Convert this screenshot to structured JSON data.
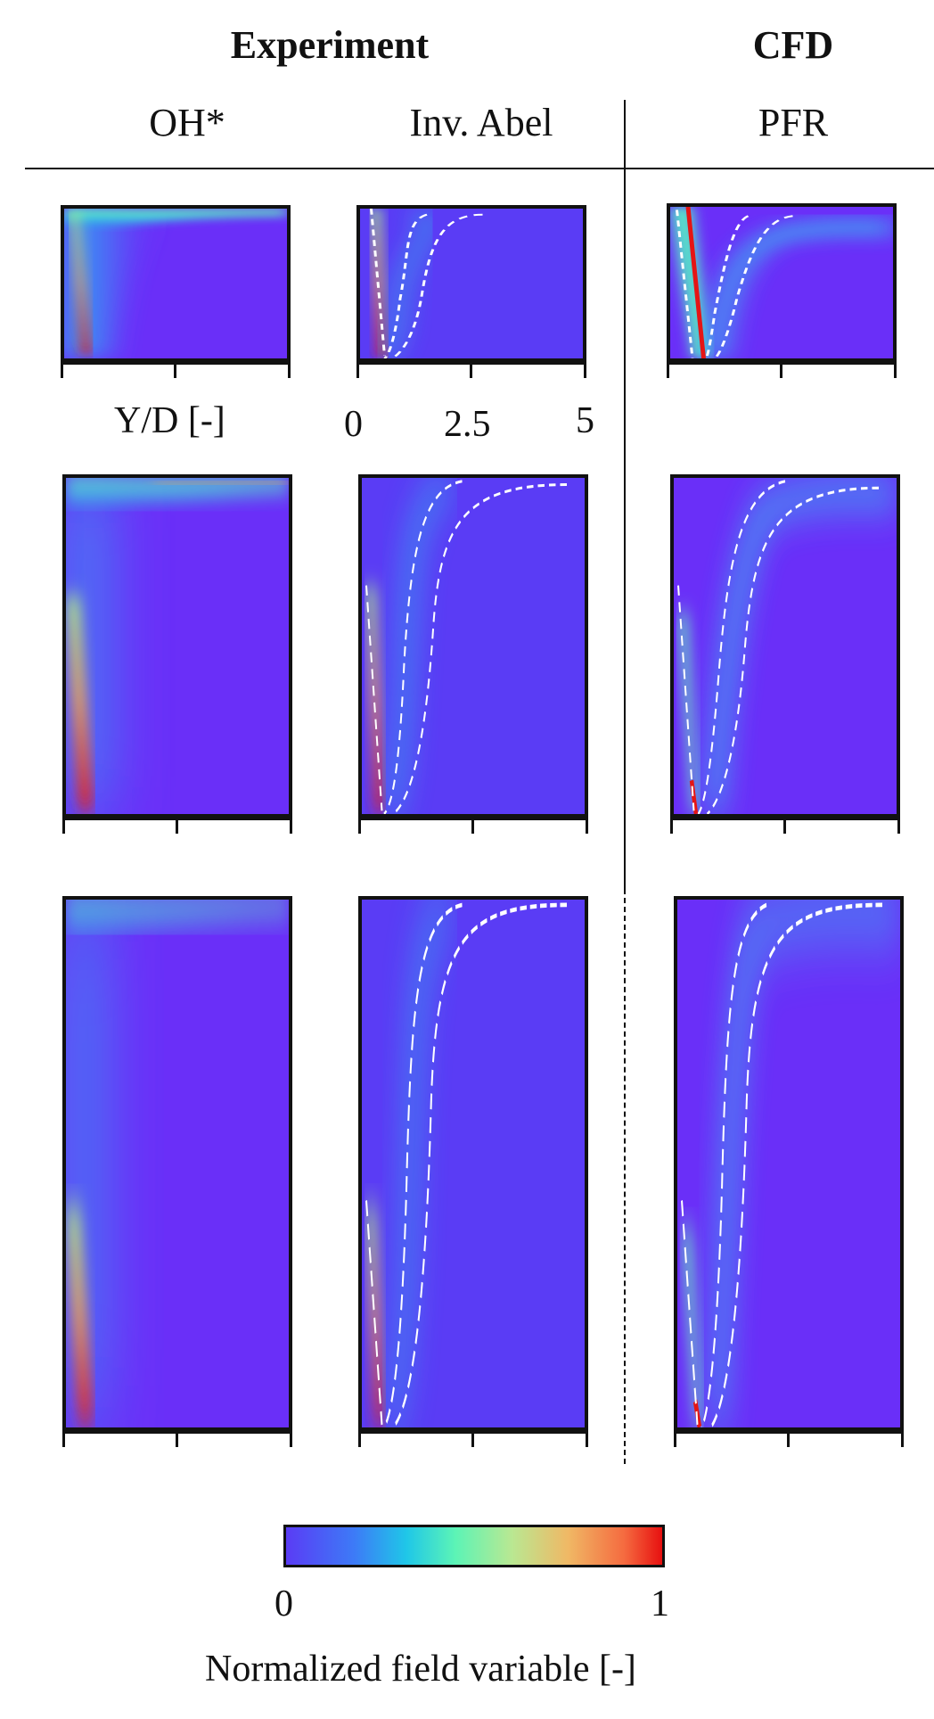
{
  "headers": {
    "experiment": "Experiment",
    "cfd": "CFD",
    "oh": "OH*",
    "abel": "Inv. Abel",
    "pfr": "PFR"
  },
  "axis": {
    "ylabel": "Y/D [-]",
    "ticks": [
      "0",
      "2.5",
      "5"
    ]
  },
  "colorbar": {
    "min": "0",
    "max": "1",
    "label": "Normalized field variable [-]",
    "colors": [
      "#5a3cf5",
      "#3d7af7",
      "#1fc7e8",
      "#5cf4b6",
      "#b9e892",
      "#f0b865",
      "#f56a3f",
      "#e71010"
    ]
  },
  "panels": {
    "rows": 3,
    "columns": [
      "OH*",
      "Inv. Abel",
      "PFR"
    ]
  }
}
